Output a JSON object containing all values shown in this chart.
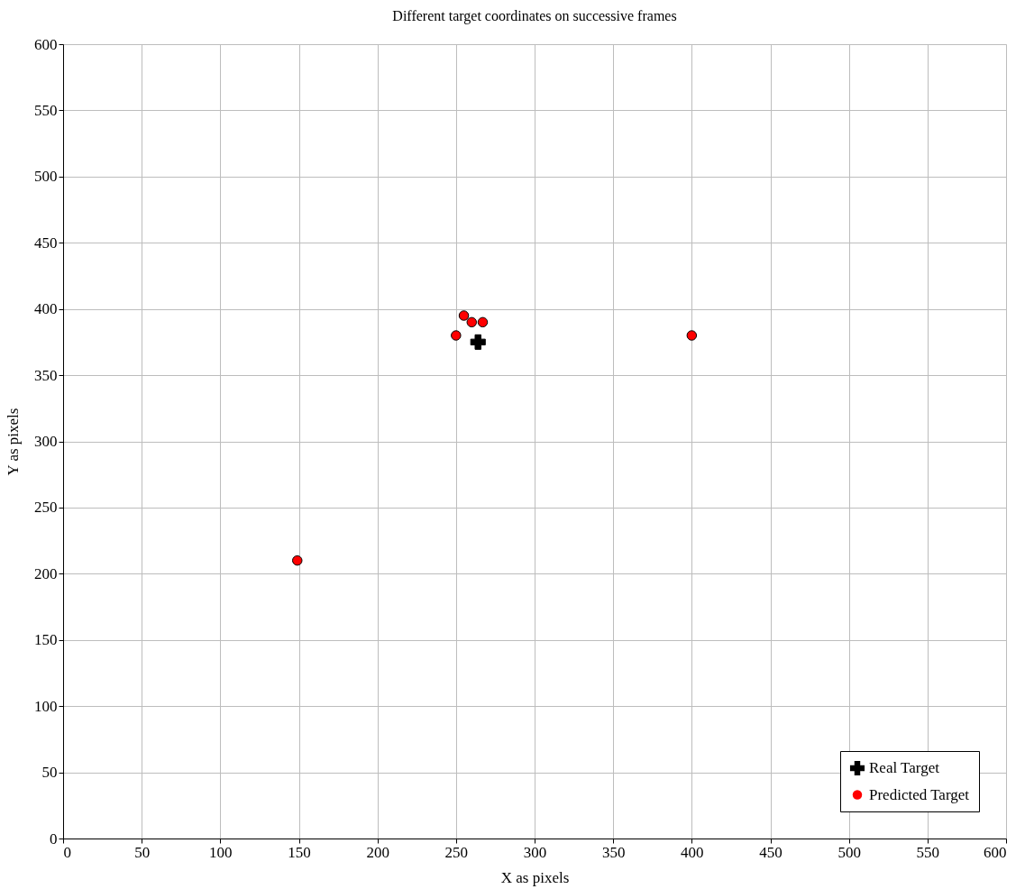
{
  "chart_data": {
    "type": "scatter",
    "title": "Different target coordinates on successive frames",
    "xlabel": "X as pixels",
    "ylabel": "Y as pixels",
    "xlim": [
      0,
      600
    ],
    "ylim": [
      0,
      600
    ],
    "xticks": [
      0,
      50,
      100,
      150,
      200,
      250,
      300,
      350,
      400,
      450,
      500,
      550,
      600
    ],
    "yticks": [
      0,
      50,
      100,
      150,
      200,
      250,
      300,
      350,
      400,
      450,
      500,
      550,
      600
    ],
    "grid": true,
    "legend": "bottom right",
    "series": [
      {
        "name": "Real Target",
        "color": "#000000",
        "marker": "cross",
        "x": [
          264
        ],
        "values": [
          375
        ]
      },
      {
        "name": "Predicted Target",
        "color": "#ff0000",
        "marker": "circle",
        "x": [
          149,
          250,
          255,
          260,
          267,
          400
        ],
        "values": [
          210,
          380,
          395,
          390,
          390,
          380
        ]
      }
    ]
  }
}
